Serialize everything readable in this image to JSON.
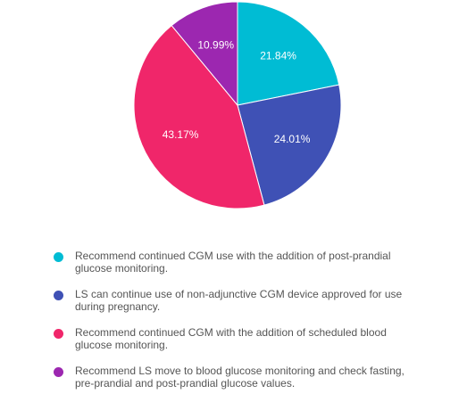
{
  "chart_data": {
    "type": "pie",
    "slices": [
      {
        "label": "Recommend continued CGM use with the addition of post-prandial glucose monitoring.",
        "value": 21.84,
        "display": "21.84%",
        "color": "#00BCD4"
      },
      {
        "label": "LS can continue use of non-adjunctive CGM device approved for use during pregnancy.",
        "value": 24.01,
        "display": "24.01%",
        "color": "#3F51B5"
      },
      {
        "label": "Recommend continued CGM with the addition of scheduled blood glucose monitoring.",
        "value": 43.17,
        "display": "43.17%",
        "color": "#F0266A"
      },
      {
        "label": "Recommend LS move to blood glucose monitoring and check fasting, pre-prandial and post-prandial glucose values.",
        "value": 10.99,
        "display": "10.99%",
        "color": "#9C27B0"
      }
    ],
    "legend_position": "bottom"
  }
}
